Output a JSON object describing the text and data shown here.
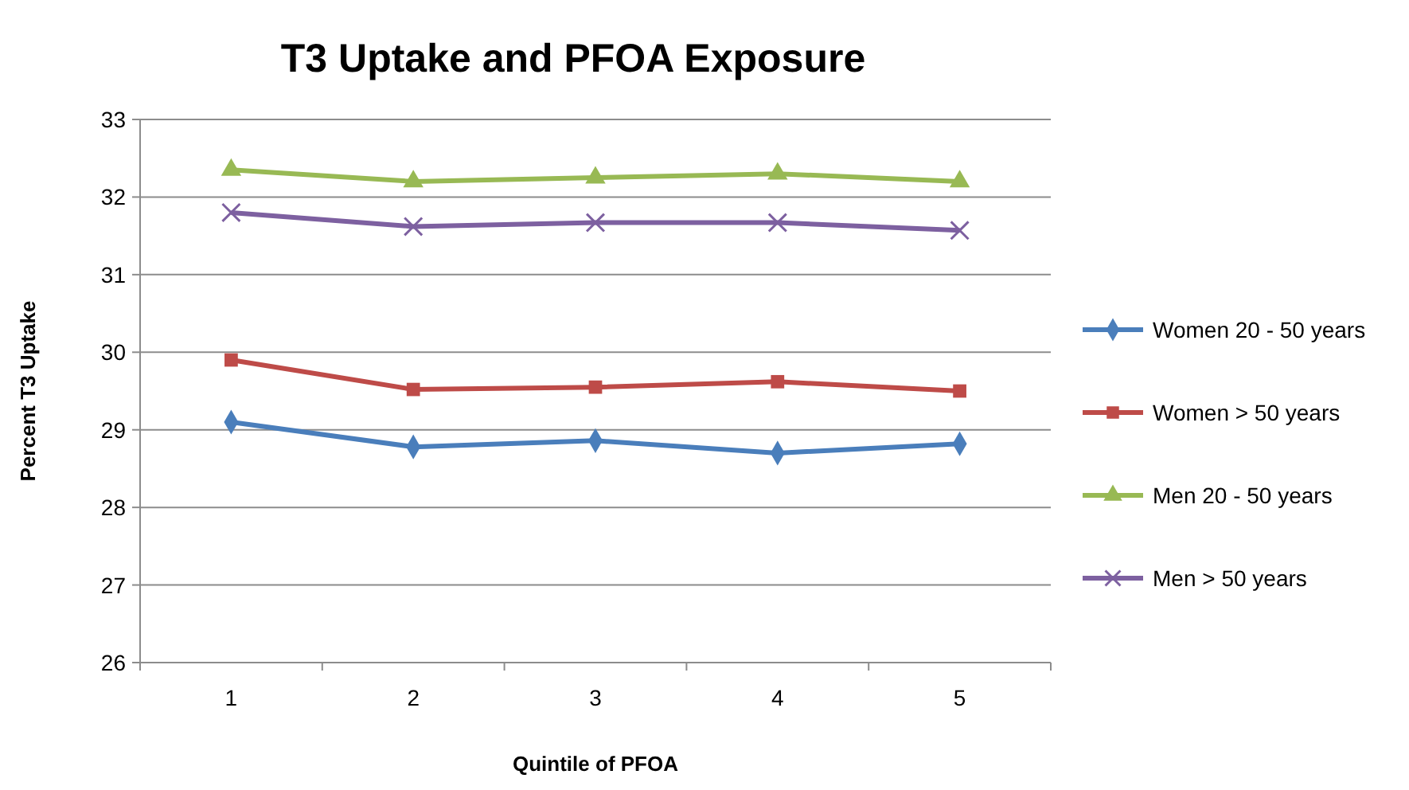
{
  "chart_data": {
    "type": "line",
    "title": "T3 Uptake and PFOA Exposure",
    "xlabel": "Quintile of PFOA",
    "ylabel": "Percent T3 Uptake",
    "categories": [
      "1",
      "2",
      "3",
      "4",
      "5"
    ],
    "ylim": [
      26,
      33
    ],
    "yticks": [
      26,
      27,
      28,
      29,
      30,
      31,
      32,
      33
    ],
    "grid": "y",
    "legend": "right",
    "line_style": "solid",
    "series": [
      {
        "name": "Women 20 - 50 years",
        "color": "#4a7ebb",
        "marker": "diamond",
        "values": [
          29.1,
          28.78,
          28.86,
          28.7,
          28.82
        ]
      },
      {
        "name": "Women > 50 years",
        "color": "#be4b48",
        "marker": "square",
        "values": [
          29.9,
          29.52,
          29.55,
          29.62,
          29.5
        ]
      },
      {
        "name": "Men 20 - 50 years",
        "color": "#98b954",
        "marker": "triangle",
        "values": [
          32.35,
          32.2,
          32.25,
          32.3,
          32.2
        ]
      },
      {
        "name": "Men > 50 years",
        "color": "#7d60a0",
        "marker": "cross",
        "values": [
          31.8,
          31.62,
          31.67,
          31.67,
          31.57
        ]
      }
    ]
  }
}
